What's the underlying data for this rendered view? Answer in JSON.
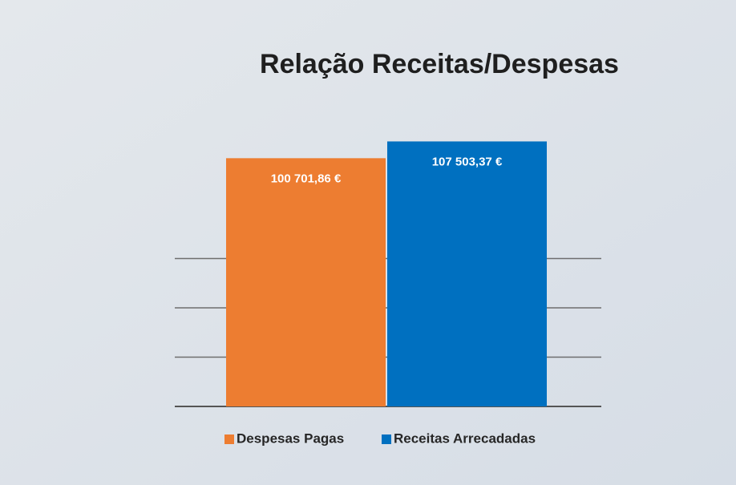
{
  "chart_data": {
    "type": "bar",
    "title": "Relação Receitas/Despesas",
    "series": [
      {
        "name": "Despesas Pagas",
        "color": "#ed7d31",
        "values": [
          100701.86
        ],
        "value_labels": [
          "100 701,86 €"
        ]
      },
      {
        "name": "Receitas Arrecadadas",
        "color": "#0070c0",
        "values": [
          107503.37
        ],
        "value_labels": [
          "107 503,37 €"
        ]
      }
    ],
    "ylim": [
      0,
      120000
    ],
    "yticks": [
      0,
      20000,
      40000,
      60000
    ],
    "grid": true,
    "legend": "bottom"
  }
}
